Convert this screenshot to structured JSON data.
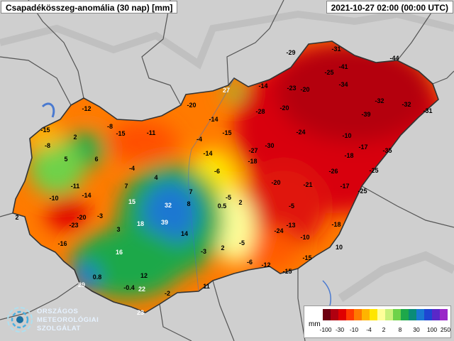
{
  "header": {
    "title": "Csapadékösszeg-anomália (30 nap) [mm]",
    "datetime": "2021-10-27 02:00 (00:00 UTC)"
  },
  "logo": {
    "line1": "ORSZÁGOS",
    "line2": "METEOROLÓGIAI",
    "line3": "SZOLGÁLAT"
  },
  "legend": {
    "unit": "mm",
    "colors": [
      "#6e0010",
      "#b00010",
      "#e00000",
      "#ff3a00",
      "#ff7a00",
      "#ffb400",
      "#ffe600",
      "#ffff9a",
      "#c8f07a",
      "#6ed24a",
      "#1ea84a",
      "#0a8c78",
      "#1a78d2",
      "#1e46d2",
      "#5a28c8",
      "#9a28c8"
    ],
    "ticks": [
      "-100",
      "-30",
      "-10",
      "-4",
      "2",
      "8",
      "30",
      "100",
      "250"
    ]
  },
  "stations": [
    {
      "v": "-29"
    },
    {
      "v": "-31"
    },
    {
      "v": "-44"
    },
    {
      "v": "-25"
    },
    {
      "v": "-41"
    },
    {
      "v": "-34"
    },
    {
      "v": "-14"
    },
    {
      "v": "-23"
    },
    {
      "v": "-20"
    },
    {
      "v": "27"
    },
    {
      "v": "-32"
    },
    {
      "v": "-32"
    },
    {
      "v": "-31"
    },
    {
      "v": "-12"
    },
    {
      "v": "-20"
    },
    {
      "v": "-28"
    },
    {
      "v": "-20"
    },
    {
      "v": "-39"
    },
    {
      "v": "-14"
    },
    {
      "v": "-8"
    },
    {
      "v": "-15"
    },
    {
      "v": "-11"
    },
    {
      "v": "-15"
    },
    {
      "v": "-15"
    },
    {
      "v": "-24"
    },
    {
      "v": "-10"
    },
    {
      "v": "2"
    },
    {
      "v": "-4"
    },
    {
      "v": "-30"
    },
    {
      "v": "-17"
    },
    {
      "v": "-8"
    },
    {
      "v": "-27"
    },
    {
      "v": "-14"
    },
    {
      "v": "-18"
    },
    {
      "v": "-35"
    },
    {
      "v": "5"
    },
    {
      "v": "6"
    },
    {
      "v": "-18"
    },
    {
      "v": "-4"
    },
    {
      "v": "-6"
    },
    {
      "v": "-26"
    },
    {
      "v": "-25"
    },
    {
      "v": "4"
    },
    {
      "v": "-10"
    },
    {
      "v": "-11"
    },
    {
      "v": "7"
    },
    {
      "v": "-20"
    },
    {
      "v": "-21"
    },
    {
      "v": "-17"
    },
    {
      "v": "-25"
    },
    {
      "v": "-14"
    },
    {
      "v": "7"
    },
    {
      "v": "-5"
    },
    {
      "v": "2"
    },
    {
      "v": "15"
    },
    {
      "v": "32"
    },
    {
      "v": "8"
    },
    {
      "v": "0.5"
    },
    {
      "v": "-20"
    },
    {
      "v": "-3"
    },
    {
      "v": "-5"
    },
    {
      "v": "2"
    },
    {
      "v": "-23"
    },
    {
      "v": "-13"
    },
    {
      "v": "-18"
    },
    {
      "v": "3"
    },
    {
      "v": "18"
    },
    {
      "v": "39"
    },
    {
      "v": "-24"
    },
    {
      "v": "-10"
    },
    {
      "v": "-16"
    },
    {
      "v": "14"
    },
    {
      "v": "-5"
    },
    {
      "v": "10"
    },
    {
      "v": "16"
    },
    {
      "v": "-3"
    },
    {
      "v": "2"
    },
    {
      "v": "-6"
    },
    {
      "v": "-12"
    },
    {
      "v": "-15"
    },
    {
      "v": "0.8"
    },
    {
      "v": "12"
    },
    {
      "v": "-15"
    },
    {
      "v": "29"
    },
    {
      "v": "-0.4"
    },
    {
      "v": "22"
    },
    {
      "v": "11"
    },
    {
      "v": "-2"
    },
    {
      "v": "23"
    }
  ]
}
